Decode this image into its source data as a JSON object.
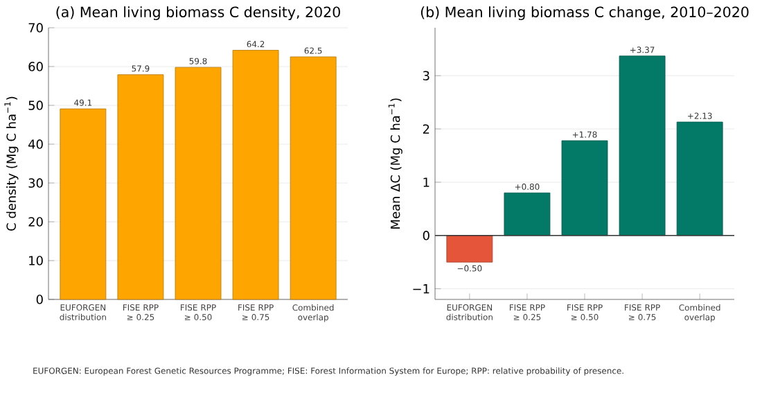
{
  "chart_data": [
    {
      "type": "bar",
      "title": "(a) Mean living biomass C density, 2020",
      "ylabel": "C density (Mg C ha$^{−1}$)",
      "categories": [
        "EUFORGEN distribution",
        "FISE RPP ≥ 0.25",
        "FISE RPP ≥ 0.50",
        "FISE RPP ≥ 0.75",
        "Combined overlap"
      ],
      "values": [
        49.1,
        57.9,
        59.8,
        64.2,
        62.5
      ],
      "color": "#ffa500",
      "data_labels": true,
      "ylim": [
        0,
        70
      ],
      "yticks": [
        0,
        10,
        20,
        30,
        40,
        50,
        60,
        70
      ],
      "grid": "y",
      "annotations": [
        "EUFORGEN: European Forest Genetic Resources Programme; FISE: Forest Information System for Europe; RPP: relative probability of presence."
      ]
    },
    {
      "type": "bar",
      "title": "(b) Mean living biomass C change, 2010–2020",
      "ylabel": "Mean ΔC (Mg C ha$^{−1}$)",
      "categories": [
        "EUFORGEN distribution",
        "FISE RPP ≥ 0.25",
        "FISE RPP ≥ 0.50",
        "FISE RPP ≥ 0.75",
        "Combined overlap"
      ],
      "values": [
        -0.5,
        0.8,
        1.78,
        3.37,
        2.13
      ],
      "colors": [
        "#e5553a",
        "#037a68",
        "#037a68",
        "#037a68",
        "#037a68"
      ],
      "value_labels": [
        "−0.50",
        "+0.80",
        "+1.78",
        "+3.37",
        "+2.13"
      ],
      "ylim": [
        -1.2,
        3.9
      ],
      "yticks": [
        {
          "value": -1,
          "label": "−1"
        },
        0,
        1,
        2,
        3
      ],
      "grid": "y",
      "ref_lines": [
        {
          "axis": "y",
          "value": 0,
          "color": "#333333"
        }
      ]
    }
  ]
}
